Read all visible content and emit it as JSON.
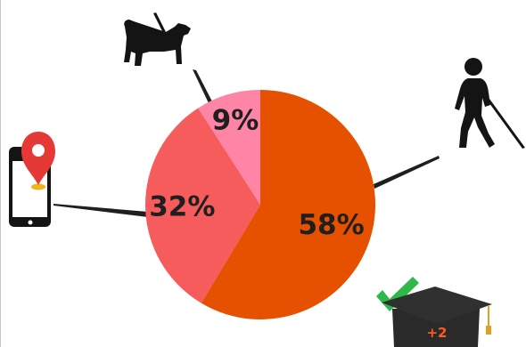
{
  "chart_data": {
    "type": "pie",
    "slices": [
      {
        "label": "58%",
        "value": 58,
        "color": "#e65100"
      },
      {
        "label": "32%",
        "value": 32,
        "color": "#f75c5c"
      },
      {
        "label": "9%",
        "value": 9,
        "color": "#ff85a6"
      }
    ],
    "start_angle_deg": 0,
    "direction": "clockwise"
  },
  "icons": {
    "guide_dog": "guide-dog-icon",
    "blind_person": "blind-person-cane-icon",
    "phone_gps": "phone-location-icon",
    "graduation": "graduation-cap-icon",
    "check": "checkmark-icon"
  },
  "badge": {
    "text": "+2",
    "color": "#ff5a1f"
  },
  "colors": {
    "check": "#2fb84a",
    "cap": "#303030",
    "tassel": "#e0a020",
    "pin": "#e53935"
  }
}
